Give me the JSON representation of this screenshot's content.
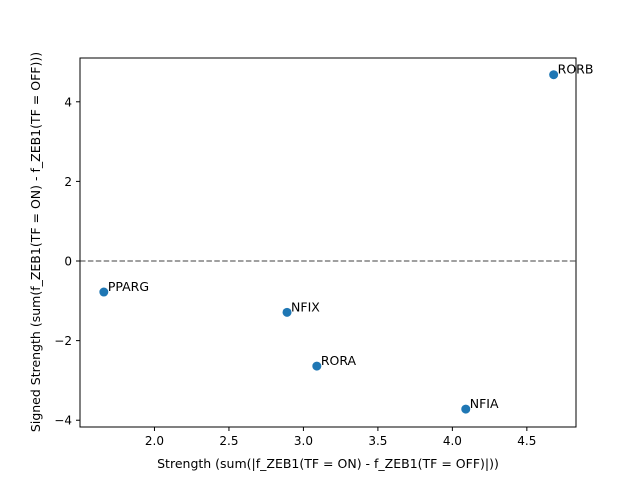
{
  "chart_data": {
    "type": "scatter",
    "title": "",
    "xlabel": "Strength (sum(|f_ZEB1(TF = ON) - f_ZEB1(TF = OFF)|))",
    "ylabel": "Signed Strength (sum(f_ZEB1(TF = ON) - f_ZEB1(TF = OFF)))",
    "xlim": [
      1.5,
      4.83
    ],
    "ylim": [
      -4.17,
      5.1
    ],
    "x_ticks": [
      2.0,
      2.5,
      3.0,
      3.5,
      4.0,
      4.5
    ],
    "x_tick_labels": [
      "2.0",
      "2.5",
      "3.0",
      "3.5",
      "4.0",
      "4.5"
    ],
    "y_ticks": [
      -4,
      -2,
      0,
      2,
      4
    ],
    "y_tick_labels": [
      "−4",
      "−2",
      "0",
      "2",
      "4"
    ],
    "grid": false,
    "reference_line": {
      "y": 0,
      "style": "dashed",
      "color": "#808080"
    },
    "point_color": "#1f77b4",
    "points": [
      {
        "label": "RORB",
        "x": 4.68,
        "y": 4.68
      },
      {
        "label": "PPARG",
        "x": 1.66,
        "y": -0.78
      },
      {
        "label": "NFIX",
        "x": 2.89,
        "y": -1.29
      },
      {
        "label": "RORA",
        "x": 3.09,
        "y": -2.64
      },
      {
        "label": "NFIA",
        "x": 4.09,
        "y": -3.72
      }
    ]
  }
}
